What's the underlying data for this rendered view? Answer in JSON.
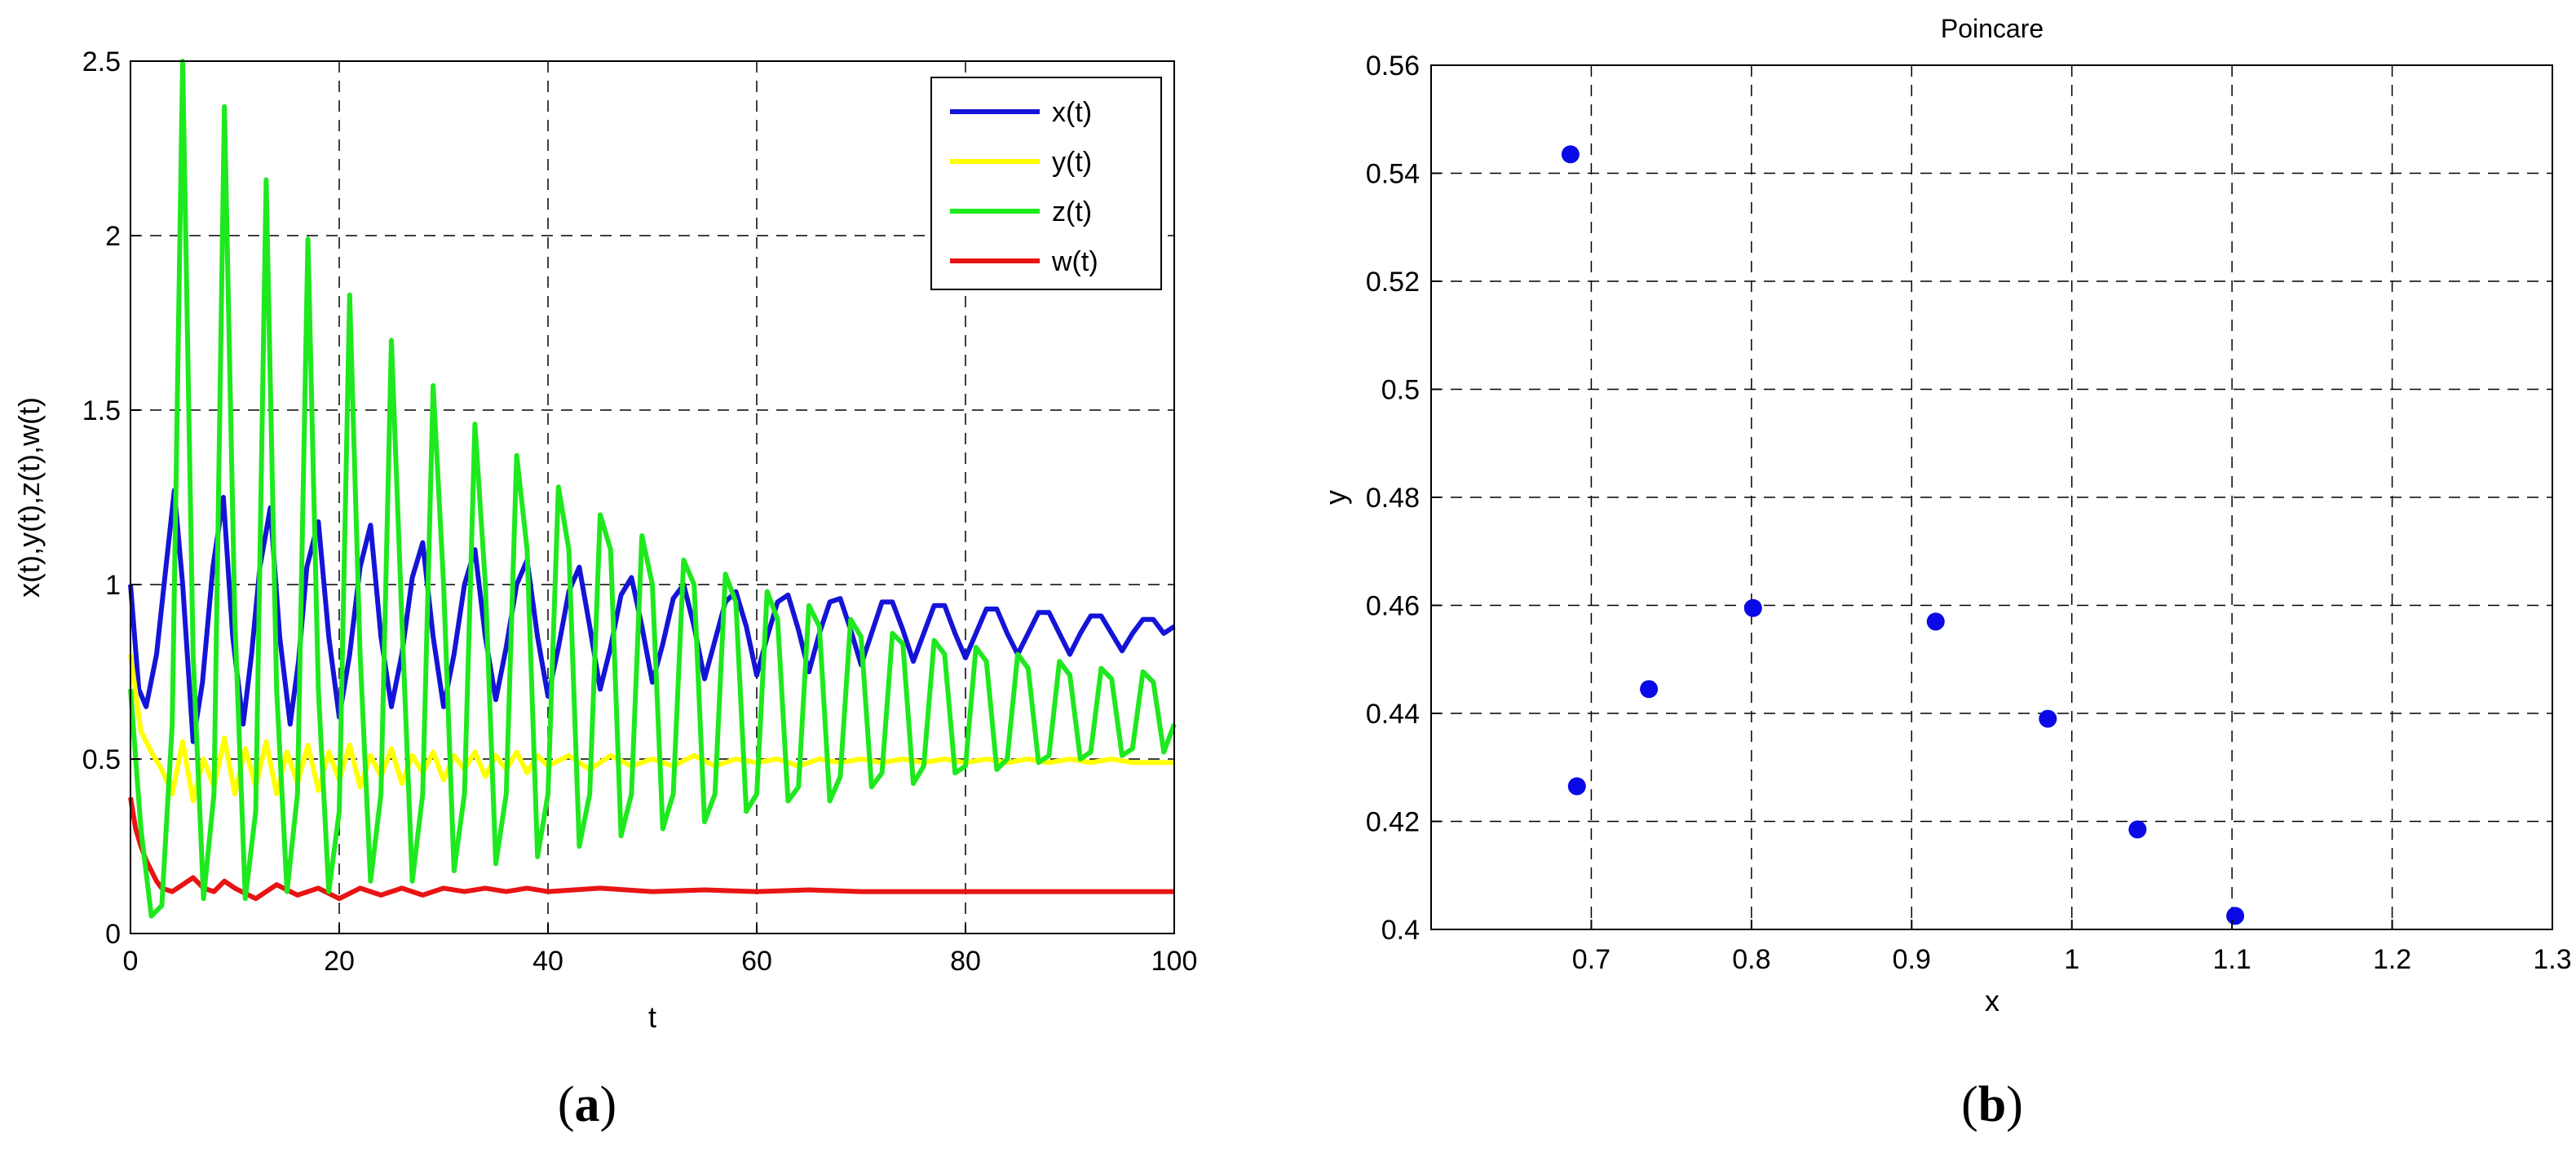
{
  "chart_data": [
    {
      "id": "a",
      "type": "line",
      "caption_open": "(",
      "caption_letter": "a",
      "caption_close": ")",
      "xlabel": "t",
      "ylabel": "x(t),y(t),z(t),w(t)",
      "xlim": [
        0,
        100
      ],
      "ylim": [
        0,
        2.5
      ],
      "xticks": [
        "0",
        "20",
        "40",
        "60",
        "80",
        "100"
      ],
      "yticks": [
        "0",
        "0.5",
        "1",
        "1.5",
        "2",
        "2.5"
      ],
      "grid": true,
      "legend_position": "top-right",
      "series": [
        {
          "name": "x(t)",
          "color": "#1414d8",
          "x": [
            0,
            0.8,
            1.5,
            2.5,
            3.4,
            4.2,
            5,
            6,
            6.9,
            7.9,
            8.9,
            9.8,
            10.8,
            11.6,
            12.4,
            13.4,
            14.3,
            15.3,
            16.1,
            16.9,
            18,
            19,
            20,
            21,
            22,
            23,
            24,
            25,
            26,
            27,
            28,
            29,
            30,
            31,
            32,
            33,
            34,
            35,
            36,
            37,
            38,
            39,
            40,
            41,
            42,
            43,
            44,
            45,
            46,
            47,
            48,
            49,
            50,
            51,
            52,
            53,
            54,
            55,
            56,
            57,
            58,
            59,
            60,
            61,
            62,
            63,
            64,
            65,
            66,
            67,
            68,
            69,
            70,
            71,
            72,
            73,
            74,
            75,
            76,
            77,
            78,
            79,
            80,
            81,
            82,
            83,
            84,
            85,
            86,
            87,
            88,
            89,
            90,
            91,
            92,
            93,
            94,
            95,
            96,
            97,
            98,
            99,
            100
          ],
          "y": [
            1.0,
            0.7,
            0.65,
            0.8,
            1.05,
            1.27,
            1.0,
            0.55,
            0.72,
            1.05,
            1.25,
            0.85,
            0.6,
            0.8,
            1.05,
            1.22,
            0.85,
            0.6,
            0.78,
            1.05,
            1.18,
            0.85,
            0.62,
            0.8,
            1.05,
            1.17,
            0.85,
            0.65,
            0.8,
            1.02,
            1.12,
            0.85,
            0.65,
            0.8,
            1.0,
            1.1,
            0.85,
            0.67,
            0.82,
            1.0,
            1.07,
            0.85,
            0.68,
            0.82,
            0.98,
            1.05,
            0.88,
            0.7,
            0.82,
            0.97,
            1.02,
            0.88,
            0.72,
            0.83,
            0.96,
            1.0,
            0.88,
            0.73,
            0.84,
            0.95,
            0.98,
            0.88,
            0.74,
            0.85,
            0.95,
            0.97,
            0.87,
            0.75,
            0.86,
            0.95,
            0.96,
            0.87,
            0.77,
            0.86,
            0.95,
            0.95,
            0.87,
            0.78,
            0.86,
            0.94,
            0.94,
            0.86,
            0.79,
            0.86,
            0.93,
            0.93,
            0.86,
            0.8,
            0.86,
            0.92,
            0.92,
            0.86,
            0.8,
            0.86,
            0.91,
            0.91,
            0.86,
            0.81,
            0.86,
            0.9,
            0.9,
            0.86,
            0.88
          ]
        },
        {
          "name": "y(t)",
          "color": "#ffff00",
          "x": [
            0,
            1,
            2,
            3,
            4,
            5,
            6,
            7,
            8,
            9,
            10,
            11,
            12,
            13,
            14,
            15,
            16,
            17,
            18,
            19,
            20,
            21,
            22,
            23,
            24,
            25,
            26,
            27,
            28,
            29,
            30,
            31,
            32,
            33,
            34,
            35,
            36,
            37,
            38,
            39,
            40,
            42,
            44,
            46,
            48,
            50,
            52,
            54,
            56,
            58,
            60,
            62,
            64,
            66,
            68,
            70,
            72,
            74,
            76,
            78,
            80,
            82,
            84,
            86,
            88,
            90,
            92,
            94,
            96,
            98,
            100
          ],
          "y": [
            0.8,
            0.58,
            0.52,
            0.47,
            0.4,
            0.55,
            0.38,
            0.5,
            0.42,
            0.56,
            0.4,
            0.53,
            0.42,
            0.55,
            0.4,
            0.52,
            0.43,
            0.54,
            0.41,
            0.52,
            0.44,
            0.54,
            0.42,
            0.51,
            0.45,
            0.53,
            0.43,
            0.51,
            0.46,
            0.52,
            0.44,
            0.51,
            0.47,
            0.52,
            0.45,
            0.51,
            0.47,
            0.52,
            0.46,
            0.51,
            0.48,
            0.51,
            0.47,
            0.51,
            0.48,
            0.5,
            0.48,
            0.51,
            0.48,
            0.5,
            0.49,
            0.5,
            0.48,
            0.5,
            0.49,
            0.5,
            0.49,
            0.5,
            0.49,
            0.5,
            0.49,
            0.5,
            0.49,
            0.5,
            0.49,
            0.5,
            0.49,
            0.5,
            0.49,
            0.49,
            0.49
          ]
        },
        {
          "name": "z(t)",
          "color": "#1ee81e",
          "x": [
            0,
            1,
            2,
            3,
            4,
            5,
            6,
            7,
            8,
            9,
            10,
            11,
            12,
            13,
            14,
            15,
            16,
            17,
            18,
            19,
            20,
            21,
            22,
            23,
            24,
            25,
            26,
            27,
            28,
            29,
            30,
            31,
            32,
            33,
            34,
            35,
            36,
            37,
            38,
            39,
            40,
            41,
            42,
            43,
            44,
            45,
            46,
            47,
            48,
            49,
            50,
            51,
            52,
            53,
            54,
            55,
            56,
            57,
            58,
            59,
            60,
            61,
            62,
            63,
            64,
            65,
            66,
            67,
            68,
            69,
            70,
            71,
            72,
            73,
            74,
            75,
            76,
            77,
            78,
            79,
            80,
            81,
            82,
            83,
            84,
            85,
            86,
            87,
            88,
            89,
            90,
            91,
            92,
            93,
            94,
            95,
            96,
            97,
            98,
            99,
            100
          ],
          "y": [
            0.7,
            0.3,
            0.05,
            0.08,
            0.6,
            2.5,
            0.8,
            0.1,
            0.4,
            2.37,
            0.9,
            0.1,
            0.35,
            2.16,
            0.7,
            0.12,
            0.4,
            1.99,
            0.7,
            0.12,
            0.35,
            1.83,
            0.8,
            0.15,
            0.4,
            1.7,
            0.9,
            0.15,
            0.4,
            1.57,
            1.0,
            0.18,
            0.4,
            1.46,
            1.0,
            0.2,
            0.4,
            1.37,
            1.1,
            0.22,
            0.4,
            1.28,
            1.1,
            0.25,
            0.4,
            1.2,
            1.1,
            0.28,
            0.4,
            1.14,
            1.0,
            0.3,
            0.4,
            1.07,
            1.0,
            0.32,
            0.4,
            1.03,
            0.95,
            0.35,
            0.4,
            0.98,
            0.9,
            0.38,
            0.42,
            0.94,
            0.88,
            0.38,
            0.45,
            0.9,
            0.85,
            0.42,
            0.46,
            0.86,
            0.83,
            0.43,
            0.48,
            0.84,
            0.8,
            0.46,
            0.48,
            0.82,
            0.78,
            0.47,
            0.5,
            0.8,
            0.76,
            0.49,
            0.51,
            0.78,
            0.74,
            0.5,
            0.52,
            0.76,
            0.73,
            0.51,
            0.53,
            0.75,
            0.72,
            0.52,
            0.6
          ]
        },
        {
          "name": "w(t)",
          "color": "#e81414",
          "x": [
            0,
            0.5,
            1,
            1.5,
            2,
            2.5,
            3,
            4,
            5,
            6,
            7,
            8,
            9,
            10,
            12,
            14,
            16,
            18,
            20,
            22,
            24,
            26,
            28,
            30,
            32,
            34,
            36,
            38,
            40,
            45,
            50,
            55,
            60,
            65,
            70,
            75,
            80,
            85,
            90,
            95,
            100
          ],
          "y": [
            0.39,
            0.3,
            0.25,
            0.21,
            0.18,
            0.15,
            0.13,
            0.12,
            0.14,
            0.16,
            0.13,
            0.12,
            0.15,
            0.13,
            0.1,
            0.14,
            0.11,
            0.13,
            0.1,
            0.13,
            0.11,
            0.13,
            0.11,
            0.13,
            0.12,
            0.13,
            0.12,
            0.13,
            0.12,
            0.13,
            0.12,
            0.125,
            0.12,
            0.125,
            0.12,
            0.12,
            0.12,
            0.12,
            0.12,
            0.12,
            0.12
          ]
        }
      ]
    },
    {
      "id": "b",
      "type": "scatter",
      "caption_open": "(",
      "caption_letter": "b",
      "caption_close": ")",
      "title": "Poincare",
      "xlabel": "x",
      "ylabel": "y",
      "xlim": [
        0.6,
        1.3
      ],
      "ylim": [
        0.4,
        0.56
      ],
      "xticks": [
        "0.7",
        "0.8",
        "0.9",
        "1",
        "1.1",
        "1.2",
        "1.3"
      ],
      "yticks": [
        "0.4",
        "0.42",
        "0.44",
        "0.46",
        "0.48",
        "0.5",
        "0.52",
        "0.54",
        "0.56"
      ],
      "grid": true,
      "point_color": "#0a0ae6",
      "points": [
        {
          "x": 0.687,
          "y": 0.5435
        },
        {
          "x": 0.691,
          "y": 0.4265
        },
        {
          "x": 0.736,
          "y": 0.4445
        },
        {
          "x": 0.801,
          "y": 0.4595
        },
        {
          "x": 0.915,
          "y": 0.457
        },
        {
          "x": 0.985,
          "y": 0.439
        },
        {
          "x": 1.041,
          "y": 0.4185
        },
        {
          "x": 1.102,
          "y": 0.4025
        }
      ]
    }
  ]
}
